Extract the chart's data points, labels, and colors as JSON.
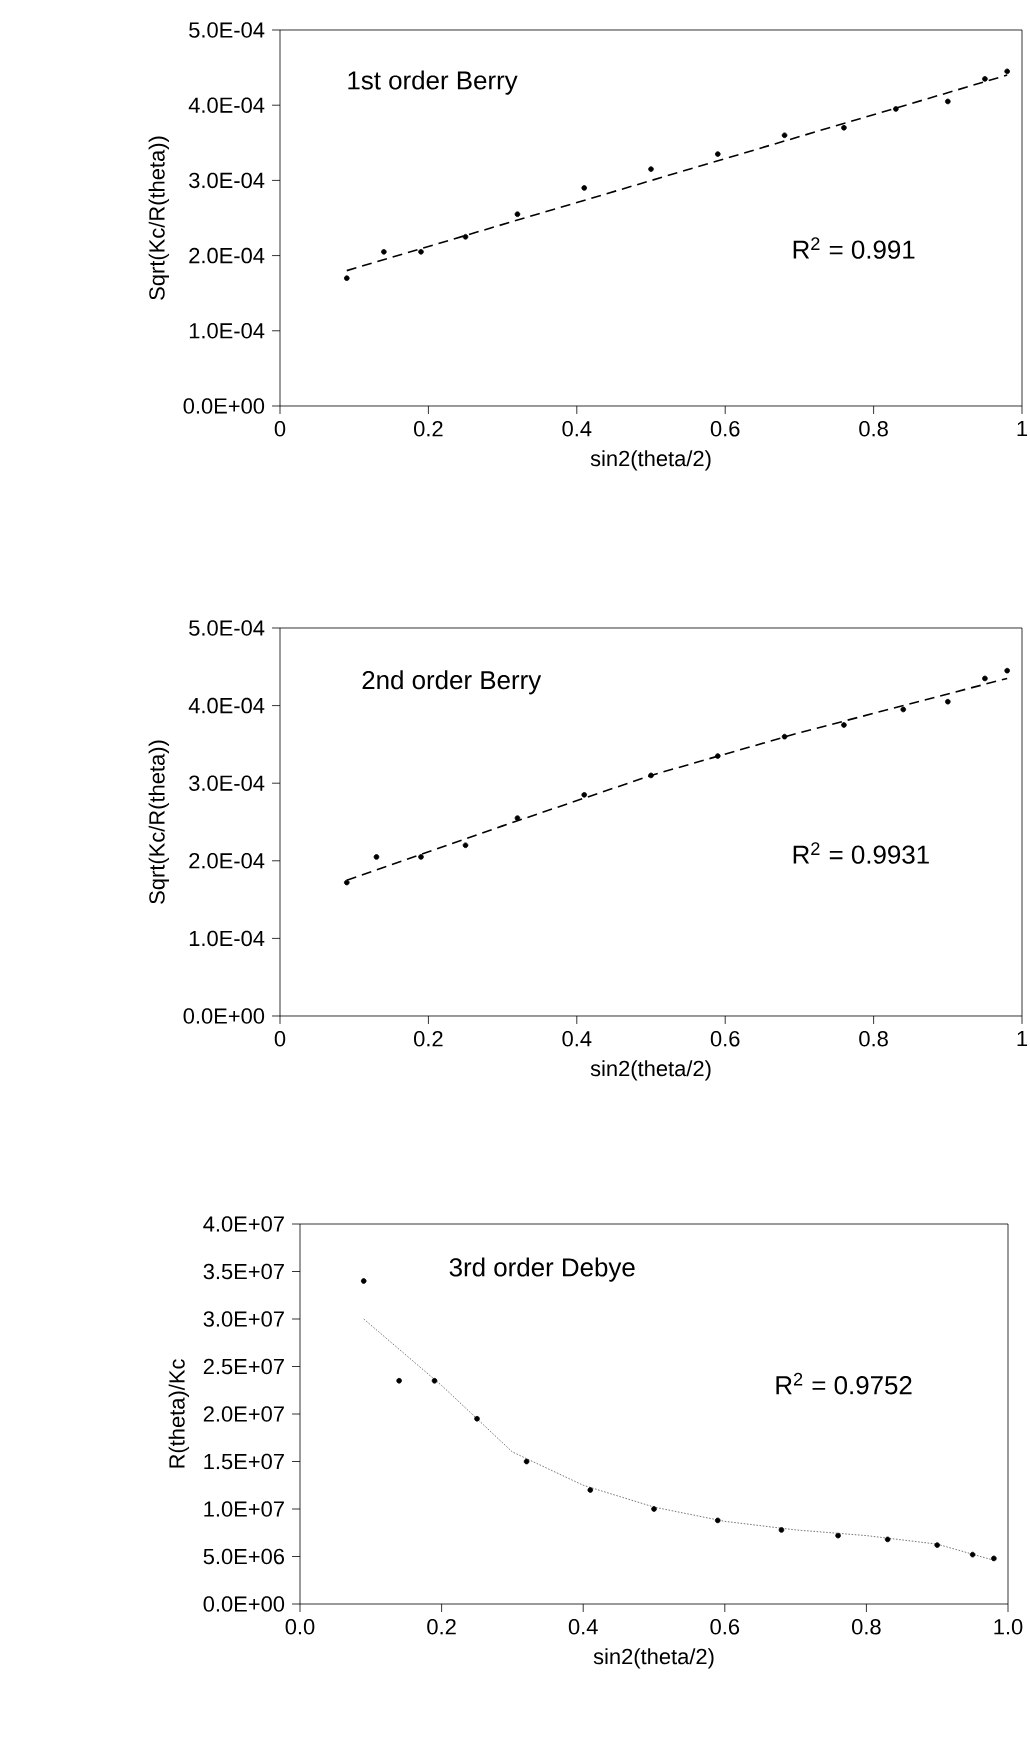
{
  "chart_data": [
    {
      "type": "scatter",
      "xlabel": "sin2(theta/2)",
      "ylabel": "Sqrt(Kc/R(theta))",
      "annotations": [
        "1st order Berry",
        "R$^{2}$ = 0.991"
      ],
      "grid": false,
      "marker": "circle",
      "xlim": [
        0,
        1
      ],
      "xticks": [
        0,
        0.2,
        0.4,
        0.6,
        0.8,
        1
      ],
      "ylim": [
        0,
        0.0005
      ],
      "yticks": [
        {
          "value": 0,
          "label": "0.0E+00"
        },
        {
          "value": 0.0001,
          "label": "1.0E-04"
        },
        {
          "value": 0.0002,
          "label": "2.0E-04"
        },
        {
          "value": 0.0003,
          "label": "3.0E-04"
        },
        {
          "value": 0.0004,
          "label": "4.0E-04"
        },
        {
          "value": 0.0005,
          "label": "5.0E-04"
        }
      ],
      "series": [
        {
          "color": "#000000",
          "x": [
            0.09,
            0.14,
            0.19,
            0.25,
            0.32,
            0.41,
            0.5,
            0.59,
            0.68,
            0.76,
            0.83,
            0.9,
            0.95,
            0.98
          ],
          "values": [
            0.00017,
            0.000205,
            0.000205,
            0.000225,
            0.000255,
            0.00029,
            0.000315,
            0.000335,
            0.00036,
            0.00037,
            0.000395,
            0.000405,
            0.000435,
            0.000445
          ]
        },
        {
          "type": "line",
          "color": "#000000",
          "line_style": "dashed",
          "marker": "none",
          "x": [
            0.09,
            0.98
          ],
          "values": [
            0.00018,
            0.00044
          ]
        }
      ]
    },
    {
      "type": "scatter",
      "xlabel": "sin2(theta/2)",
      "ylabel": "Sqrt(Kc/R(theta))",
      "annotations": [
        "2nd order Berry",
        "R$^{2}$ = 0.9931"
      ],
      "grid": false,
      "marker": "circle",
      "xlim": [
        0,
        1
      ],
      "xticks": [
        0,
        0.2,
        0.4,
        0.6,
        0.8,
        1
      ],
      "ylim": [
        0,
        0.0005
      ],
      "yticks": [
        {
          "value": 0,
          "label": "0.0E+00"
        },
        {
          "value": 0.0001,
          "label": "1.0E-04"
        },
        {
          "value": 0.0002,
          "label": "2.0E-04"
        },
        {
          "value": 0.0003,
          "label": "3.0E-04"
        },
        {
          "value": 0.0004,
          "label": "4.0E-04"
        },
        {
          "value": 0.0005,
          "label": "5.0E-04"
        }
      ],
      "series": [
        {
          "color": "#000000",
          "x": [
            0.09,
            0.13,
            0.19,
            0.25,
            0.32,
            0.41,
            0.5,
            0.59,
            0.68,
            0.76,
            0.84,
            0.9,
            0.95,
            0.98
          ],
          "values": [
            0.000172,
            0.000205,
            0.000205,
            0.00022,
            0.000255,
            0.000285,
            0.00031,
            0.000335,
            0.00036,
            0.000375,
            0.000395,
            0.000405,
            0.000435,
            0.000445
          ]
        },
        {
          "type": "line",
          "color": "#000000",
          "line_style": "dashed",
          "marker": "none",
          "x": [
            0.09,
            0.3,
            0.5,
            0.7,
            0.98
          ],
          "values": [
            0.000175,
            0.000245,
            0.00031,
            0.000365,
            0.000435
          ]
        }
      ]
    },
    {
      "type": "scatter",
      "xlabel": "sin2(theta/2)",
      "ylabel": "R(theta)/Kc",
      "annotations": [
        "3rd order Debye",
        "R$^{2}$ = 0.9752"
      ],
      "grid": false,
      "marker": "circle",
      "xlim": [
        0,
        1
      ],
      "xticks": [
        {
          "value": 0,
          "label": "0.0"
        },
        {
          "value": 0.2,
          "label": "0.2"
        },
        {
          "value": 0.4,
          "label": "0.4"
        },
        {
          "value": 0.6,
          "label": "0.6"
        },
        {
          "value": 0.8,
          "label": "0.8"
        },
        {
          "value": 1,
          "label": "1.0"
        }
      ],
      "ylim": [
        0,
        40000000
      ],
      "yticks": [
        {
          "value": 0,
          "label": "0.0E+00"
        },
        {
          "value": 5000000,
          "label": "5.0E+06"
        },
        {
          "value": 10000000,
          "label": "1.0E+07"
        },
        {
          "value": 15000000,
          "label": "1.5E+07"
        },
        {
          "value": 20000000,
          "label": "2.0E+07"
        },
        {
          "value": 25000000,
          "label": "2.5E+07"
        },
        {
          "value": 30000000,
          "label": "3.0E+07"
        },
        {
          "value": 35000000,
          "label": "3.5E+07"
        },
        {
          "value": 40000000,
          "label": "4.0E+07"
        }
      ],
      "series": [
        {
          "color": "#000000",
          "x": [
            0.09,
            0.14,
            0.19,
            0.25,
            0.32,
            0.41,
            0.5,
            0.59,
            0.68,
            0.76,
            0.83,
            0.9,
            0.95,
            0.98
          ],
          "values": [
            34000000,
            23500000,
            23500000,
            19500000,
            15000000,
            12000000,
            10000000,
            8800000,
            7800000,
            7200000,
            6800000,
            6200000,
            5200000,
            4800000
          ]
        },
        {
          "type": "line",
          "color": "#555555",
          "line_style": "dotted",
          "marker": "none",
          "x": [
            0.09,
            0.2,
            0.3,
            0.4,
            0.5,
            0.6,
            0.7,
            0.8,
            0.9,
            0.98
          ],
          "values": [
            30000000,
            23000000,
            16000000,
            12500000,
            10200000,
            8700000,
            7800000,
            7200000,
            6300000,
            4600000
          ]
        }
      ]
    }
  ]
}
